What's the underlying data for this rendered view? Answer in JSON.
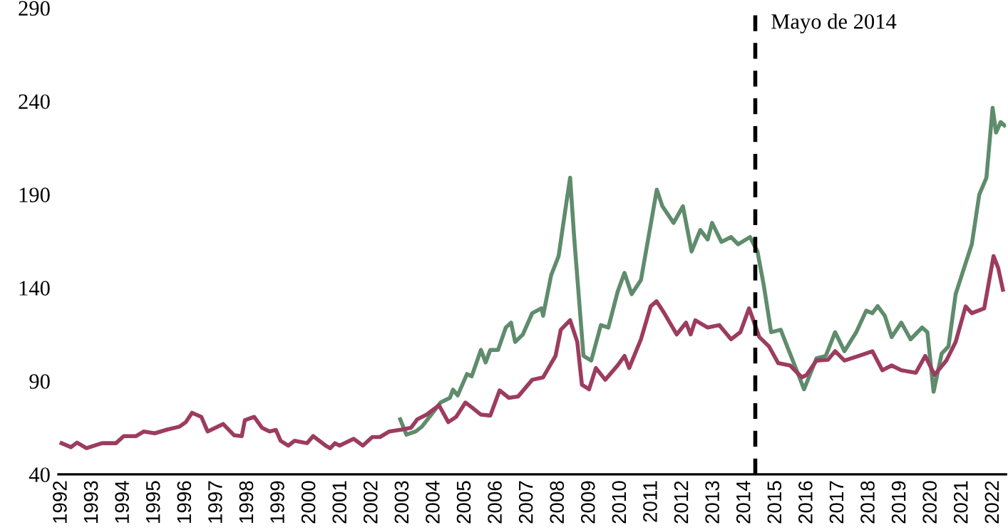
{
  "chart_data": {
    "type": "line",
    "line_style": "solid",
    "marker": "none",
    "grid": false,
    "legend": false,
    "xlim": [
      1991.9,
      2022.4
    ],
    "ylim": [
      40,
      290
    ],
    "xticks": [
      1992,
      1993,
      1994,
      1995,
      1996,
      1997,
      1998,
      1999,
      2000,
      2001,
      2002,
      2003,
      2004,
      2005,
      2006,
      2007,
      2008,
      2009,
      2010,
      2011,
      2012,
      2013,
      2014,
      2015,
      2016,
      2017,
      2018,
      2019,
      2020,
      2021,
      2022
    ],
    "yticks": [
      40,
      90,
      140,
      190,
      240,
      290
    ],
    "ref_lines": [
      {
        "axis": "x",
        "value": 2014.33,
        "label": "Mayo de 2014",
        "color": "#000000",
        "line_style": "dashed"
      }
    ],
    "series": [
      {
        "color": "#5f8c6c",
        "x": [
          2002.9,
          2003.1,
          2003.4,
          2003.6,
          2003.9,
          2004.2,
          2004.5,
          2004.6,
          2004.75,
          2005.05,
          2005.2,
          2005.5,
          2005.65,
          2005.8,
          2006.05,
          2006.3,
          2006.47,
          2006.6,
          2006.85,
          2007.15,
          2007.45,
          2007.5,
          2007.76,
          2008.0,
          2008.2,
          2008.37,
          2008.5,
          2008.8,
          2009.05,
          2009.36,
          2009.6,
          2009.9,
          2010.12,
          2010.35,
          2010.65,
          2010.96,
          2011.16,
          2011.34,
          2011.7,
          2012.0,
          2012.28,
          2012.56,
          2012.8,
          2012.94,
          2013.24,
          2013.55,
          2013.78,
          2014.16,
          2014.4,
          2014.6,
          2014.84,
          2015.15,
          2015.3,
          2015.6,
          2015.9,
          2016.3,
          2016.6,
          2016.9,
          2017.2,
          2017.58,
          2017.9,
          2018.1,
          2018.27,
          2018.5,
          2018.72,
          2019.03,
          2019.33,
          2019.7,
          2019.87,
          2020.07,
          2020.33,
          2020.55,
          2020.78,
          2021.1,
          2021.3,
          2021.54,
          2021.77,
          2021.97,
          2022.08,
          2022.23,
          2022.35
        ],
        "values": [
          69.5,
          61.3,
          63,
          65.6,
          72,
          78.5,
          81,
          85.4,
          82.3,
          93.8,
          92.5,
          106.7,
          100,
          106.7,
          106.7,
          118.7,
          121.3,
          111,
          115,
          126.4,
          129,
          125,
          146.8,
          157,
          180,
          199,
          167,
          103.5,
          101,
          120,
          118.7,
          137.9,
          148,
          136.6,
          144.2,
          173.5,
          192.6,
          183.7,
          174.8,
          183.7,
          159.5,
          171,
          165.9,
          174.8,
          164.6,
          167.2,
          163.3,
          167.2,
          159.5,
          141.7,
          116.2,
          117.5,
          111,
          98.4,
          85.6,
          102.2,
          103.5,
          116.2,
          106,
          116.2,
          127.7,
          126.4,
          130.2,
          125,
          113.6,
          121.3,
          112.4,
          118.7,
          116.2,
          84.3,
          104.7,
          108.6,
          136.6,
          153.1,
          163.3,
          190,
          199,
          236.5,
          223.2,
          228.8,
          227
        ]
      },
      {
        "color": "#9c3c5e",
        "x": [
          1992.0,
          1992.3,
          1992.5,
          1992.8,
          1993.3,
          1993.75,
          1994.0,
          1994.4,
          1994.65,
          1995.0,
          1995.4,
          1995.8,
          1996.0,
          1996.2,
          1996.5,
          1996.7,
          1997.2,
          1997.55,
          1997.8,
          1997.9,
          1998.2,
          1998.45,
          1998.7,
          1998.9,
          1999.05,
          1999.3,
          1999.5,
          1999.9,
          2000.1,
          2000.5,
          2000.65,
          2000.8,
          2000.95,
          2001.4,
          2001.7,
          2002.0,
          2002.25,
          2002.55,
          2002.95,
          2003.25,
          2003.45,
          2003.75,
          2004.15,
          2004.45,
          2004.7,
          2005.0,
          2005.2,
          2005.5,
          2005.8,
          2006.1,
          2006.4,
          2006.7,
          2007.15,
          2007.5,
          2007.9,
          2008.07,
          2008.37,
          2008.6,
          2008.75,
          2008.98,
          2009.2,
          2009.5,
          2009.9,
          2010.12,
          2010.27,
          2010.65,
          2010.96,
          2011.15,
          2011.4,
          2011.8,
          2012.1,
          2012.25,
          2012.4,
          2012.8,
          2013.17,
          2013.55,
          2013.85,
          2014.13,
          2014.46,
          2014.77,
          2015.07,
          2015.45,
          2015.83,
          2015.98,
          2016.3,
          2016.67,
          2016.9,
          2017.2,
          2017.66,
          2018.1,
          2018.42,
          2018.72,
          2019.03,
          2019.5,
          2019.8,
          2020.1,
          2020.48,
          2020.78,
          2021.1,
          2021.3,
          2021.7,
          2022.0,
          2022.15,
          2022.3
        ],
        "values": [
          56.7,
          54.6,
          57,
          54,
          56.7,
          56.7,
          60.5,
          60.5,
          63,
          62,
          64,
          65.6,
          68,
          73,
          70.8,
          63,
          67,
          61,
          60.5,
          69,
          70.8,
          65,
          63,
          63.8,
          58,
          55.4,
          58,
          56.7,
          60.5,
          55.4,
          54,
          56.7,
          55.4,
          59,
          55.4,
          60,
          60,
          63,
          64,
          65,
          69.5,
          72,
          77,
          68,
          70.8,
          78.5,
          76,
          72,
          71.5,
          85,
          81,
          81.8,
          90.7,
          92,
          103.5,
          117.5,
          122.6,
          111,
          88,
          85.6,
          97,
          90.7,
          98.4,
          103.5,
          97,
          112.4,
          130,
          132.8,
          126.4,
          115,
          121.3,
          115,
          122.6,
          118.7,
          120,
          112.4,
          116.2,
          129,
          113.6,
          108.6,
          99.6,
          98.4,
          92,
          93.3,
          101,
          101.4,
          106,
          101,
          103.5,
          106,
          95.8,
          98.4,
          95.8,
          94.5,
          103.5,
          93.3,
          101,
          111,
          130,
          126.4,
          129,
          157,
          150.6,
          139
        ]
      }
    ]
  }
}
